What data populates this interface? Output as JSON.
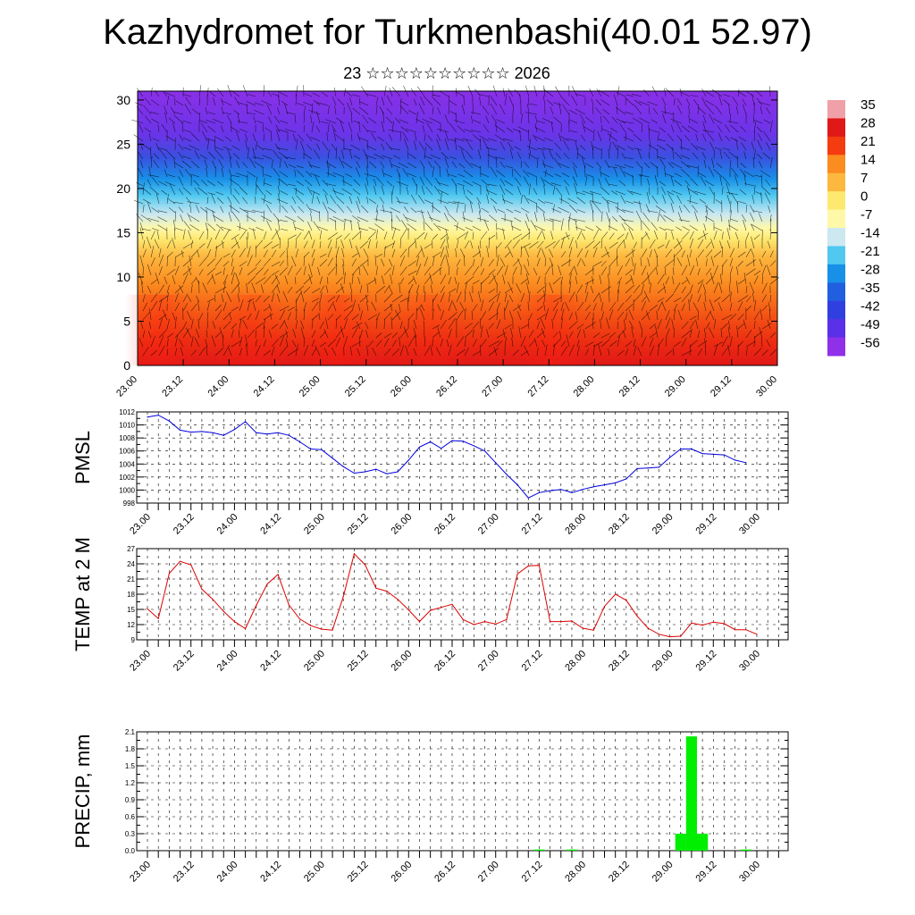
{
  "title": "Kazhydromet for Turkmenbashi(40.01 52.97)",
  "subtitle": "23 ☆☆☆☆☆☆☆☆☆☆ 2026",
  "chart_data": [
    {
      "type": "heatmap",
      "title": "",
      "xlabel": "",
      "ylabel": "",
      "x_tick_labels": [
        "23.00",
        "23.12",
        "24.00",
        "24.12",
        "25.00",
        "25.12",
        "26.00",
        "26.12",
        "27.00",
        "27.12",
        "28.00",
        "28.12",
        "29.00",
        "29.12",
        "30.00"
      ],
      "ylim": [
        0,
        31
      ],
      "y_ticks": [
        0,
        5,
        10,
        15,
        20,
        25,
        30
      ],
      "colorbar": {
        "labels": [
          "35",
          "28",
          "21",
          "14",
          "7",
          "0",
          "-7",
          "-14",
          "-21",
          "-28",
          "-35",
          "-42",
          "-49",
          "-56"
        ],
        "values": [
          35,
          28,
          21,
          14,
          7,
          0,
          -7,
          -14,
          -21,
          -28,
          -35,
          -42,
          -49,
          -56
        ],
        "colors": [
          "#f0a0a8",
          "#e01818",
          "#f43c10",
          "#fb8c20",
          "#fdb840",
          "#fde870",
          "#fff8a8",
          "#cce8f0",
          "#50c8f0",
          "#1890e8",
          "#2060e0",
          "#3040e0",
          "#5a30e8",
          "#9030e8"
        ]
      },
      "overlay": "wind barbs"
    },
    {
      "type": "line",
      "ylabel": "PMSL",
      "ylim": [
        998,
        1012
      ],
      "y_ticks": [
        998,
        1000,
        1002,
        1004,
        1006,
        1008,
        1010,
        1012
      ],
      "x_tick_labels": [
        "23.00",
        "23.12",
        "24.00",
        "24.12",
        "25.00",
        "25.12",
        "26.00",
        "26.12",
        "27.00",
        "27.12",
        "28.00",
        "28.12",
        "29.00",
        "29.12",
        "30.00"
      ],
      "color": "#0000dd",
      "x_step_hours": 3,
      "values": [
        1011.2,
        1011.5,
        1010.6,
        1009.2,
        1008.9,
        1009.0,
        1008.8,
        1008.4,
        1009.3,
        1010.5,
        1008.8,
        1008.6,
        1008.8,
        1008.4,
        1007.4,
        1006.3,
        1006.2,
        1004.9,
        1003.6,
        1002.6,
        1002.8,
        1003.2,
        1002.5,
        1002.8,
        1004.6,
        1006.6,
        1007.4,
        1006.4,
        1007.6,
        1007.5,
        1006.8,
        1006.0,
        1004.2,
        1002.4,
        1000.8,
        998.8,
        999.6,
        999.9,
        1000.1,
        999.6,
        1000.1,
        1000.5,
        1000.8,
        1001.1,
        1001.7,
        1003.3,
        1003.4,
        1003.5,
        1005.0,
        1006.3,
        1006.3,
        1005.6,
        1005.5,
        1005.4,
        1004.6,
        1004.2
      ]
    },
    {
      "type": "line",
      "ylabel": "TEMP at 2 M",
      "ylim": [
        9,
        27
      ],
      "y_ticks": [
        9,
        12,
        15,
        18,
        21,
        24,
        27
      ],
      "x_tick_labels": [
        "23.00",
        "23.12",
        "24.00",
        "24.12",
        "25.00",
        "25.12",
        "26.00",
        "26.12",
        "27.00",
        "27.12",
        "28.00",
        "28.12",
        "29.00",
        "29.12",
        "30.00"
      ],
      "color": "#dd0000",
      "x_step_hours": 3,
      "values": [
        15.1,
        13.2,
        22.1,
        24.5,
        23.8,
        19.0,
        17.0,
        14.6,
        12.6,
        11.2,
        15.8,
        20.0,
        21.9,
        15.9,
        13.1,
        11.8,
        11.1,
        10.9,
        17.5,
        26.0,
        23.8,
        19.2,
        18.6,
        17.0,
        14.9,
        12.6,
        14.8,
        15.4,
        16.0,
        13.0,
        12.0,
        12.6,
        12.1,
        13.0,
        22.0,
        23.6,
        23.7,
        12.6,
        12.6,
        12.7,
        11.3,
        10.9,
        15.6,
        18.0,
        16.8,
        13.7,
        11.3,
        10.1,
        9.6,
        9.7,
        12.3,
        11.9,
        12.5,
        12.2,
        11.0,
        11.0,
        10.1
      ]
    },
    {
      "type": "bar",
      "ylabel": "PRECIP, mm",
      "ylim": [
        0,
        2.1
      ],
      "y_ticks": [
        "0.0",
        "0.3",
        "0.6",
        "0.9",
        "1.2",
        "1.5",
        "1.8",
        "2.1"
      ],
      "x_tick_labels": [
        "23.00",
        "23.12",
        "24.00",
        "24.12",
        "25.00",
        "25.12",
        "26.00",
        "26.12",
        "27.00",
        "27.12",
        "28.00",
        "28.12",
        "29.00",
        "29.12",
        "30.00"
      ],
      "color": "#00ee00",
      "x_step_hours": 3,
      "values": [
        0,
        0,
        0,
        0,
        0,
        0,
        0,
        0,
        0,
        0,
        0,
        0,
        0,
        0,
        0,
        0,
        0,
        0,
        0,
        0,
        0,
        0,
        0,
        0,
        0,
        0,
        0,
        0,
        0,
        0,
        0,
        0,
        0,
        0,
        0,
        0,
        0.02,
        0,
        0,
        0.02,
        0,
        0,
        0,
        0,
        0,
        0,
        0,
        0,
        0,
        0.3,
        2.02,
        0.3,
        0,
        0,
        0,
        0.02
      ]
    }
  ]
}
